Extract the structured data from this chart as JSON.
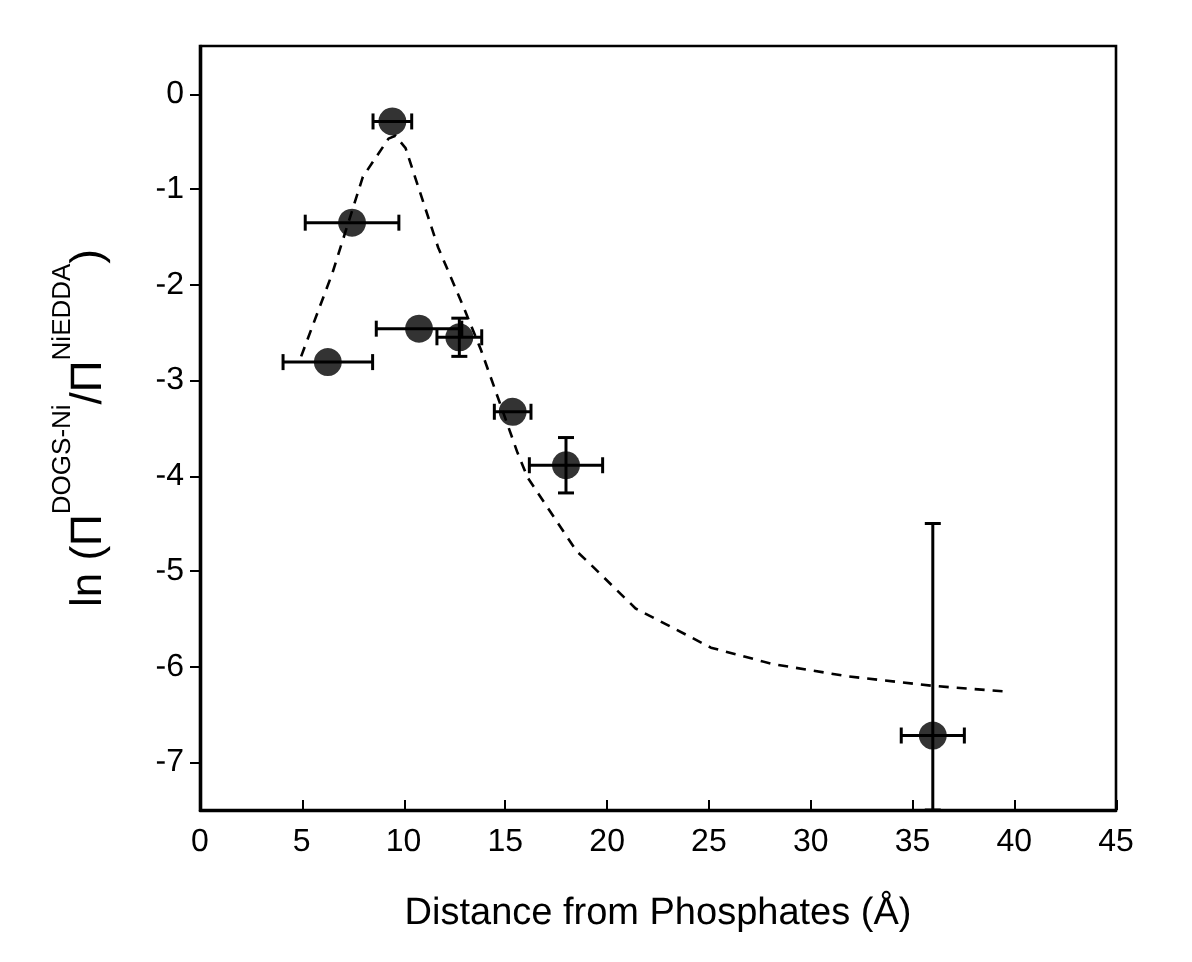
{
  "chart_data": {
    "type": "scatter",
    "xlabel": "Distance from Phosphates (Å)",
    "ylabel": "ln (Π$^{DOGS-Ni}$/Π$^{NiEDDA}$)",
    "xlim": [
      0,
      45
    ],
    "xticks": [
      0,
      5,
      10,
      15,
      20,
      25,
      30,
      35,
      40,
      45
    ],
    "ylim": [
      -7.5,
      0.5
    ],
    "yticks": [
      0,
      -1,
      -2,
      -3,
      -4,
      -5,
      -6,
      -7
    ],
    "grid": false,
    "marker": "circle",
    "series": [
      {
        "color": "#000000",
        "x": [
          6.28,
          7.47,
          9.45,
          10.76,
          12.74,
          15.36,
          17.98,
          36
        ],
        "values": [
          -2.81,
          -1.35,
          -0.29,
          -2.46,
          -2.55,
          -3.33,
          -3.89,
          -6.72
        ],
        "errors": [
          null,
          null,
          null,
          null,
          0.2,
          null,
          0.29,
          [
            -7.5,
            -4.5
          ]
        ],
        "xerrors": [
          2.2,
          2.3,
          0.95,
          2.1,
          1.1,
          0.9,
          1.8,
          1.55
        ]
      },
      {
        "type": "line",
        "color": "#000000",
        "line_style": "dashed",
        "marker": "none",
        "x": [
          4.97,
          6.5,
          8.0,
          9.26,
          9.6,
          10.1,
          11.7,
          12.9,
          13.8,
          15.6,
          16.1,
          18.5,
          19,
          21.4,
          25.1,
          28.1,
          31.8,
          36,
          39.6
        ],
        "values": [
          -2.75,
          -1.88,
          -0.87,
          -0.47,
          -0.44,
          -0.57,
          -1.61,
          -2.21,
          -2.68,
          -3.76,
          -4.02,
          -4.79,
          -4.89,
          -5.39,
          -5.8,
          -5.97,
          -6.1,
          -6.2,
          -6.26
        ]
      }
    ]
  }
}
